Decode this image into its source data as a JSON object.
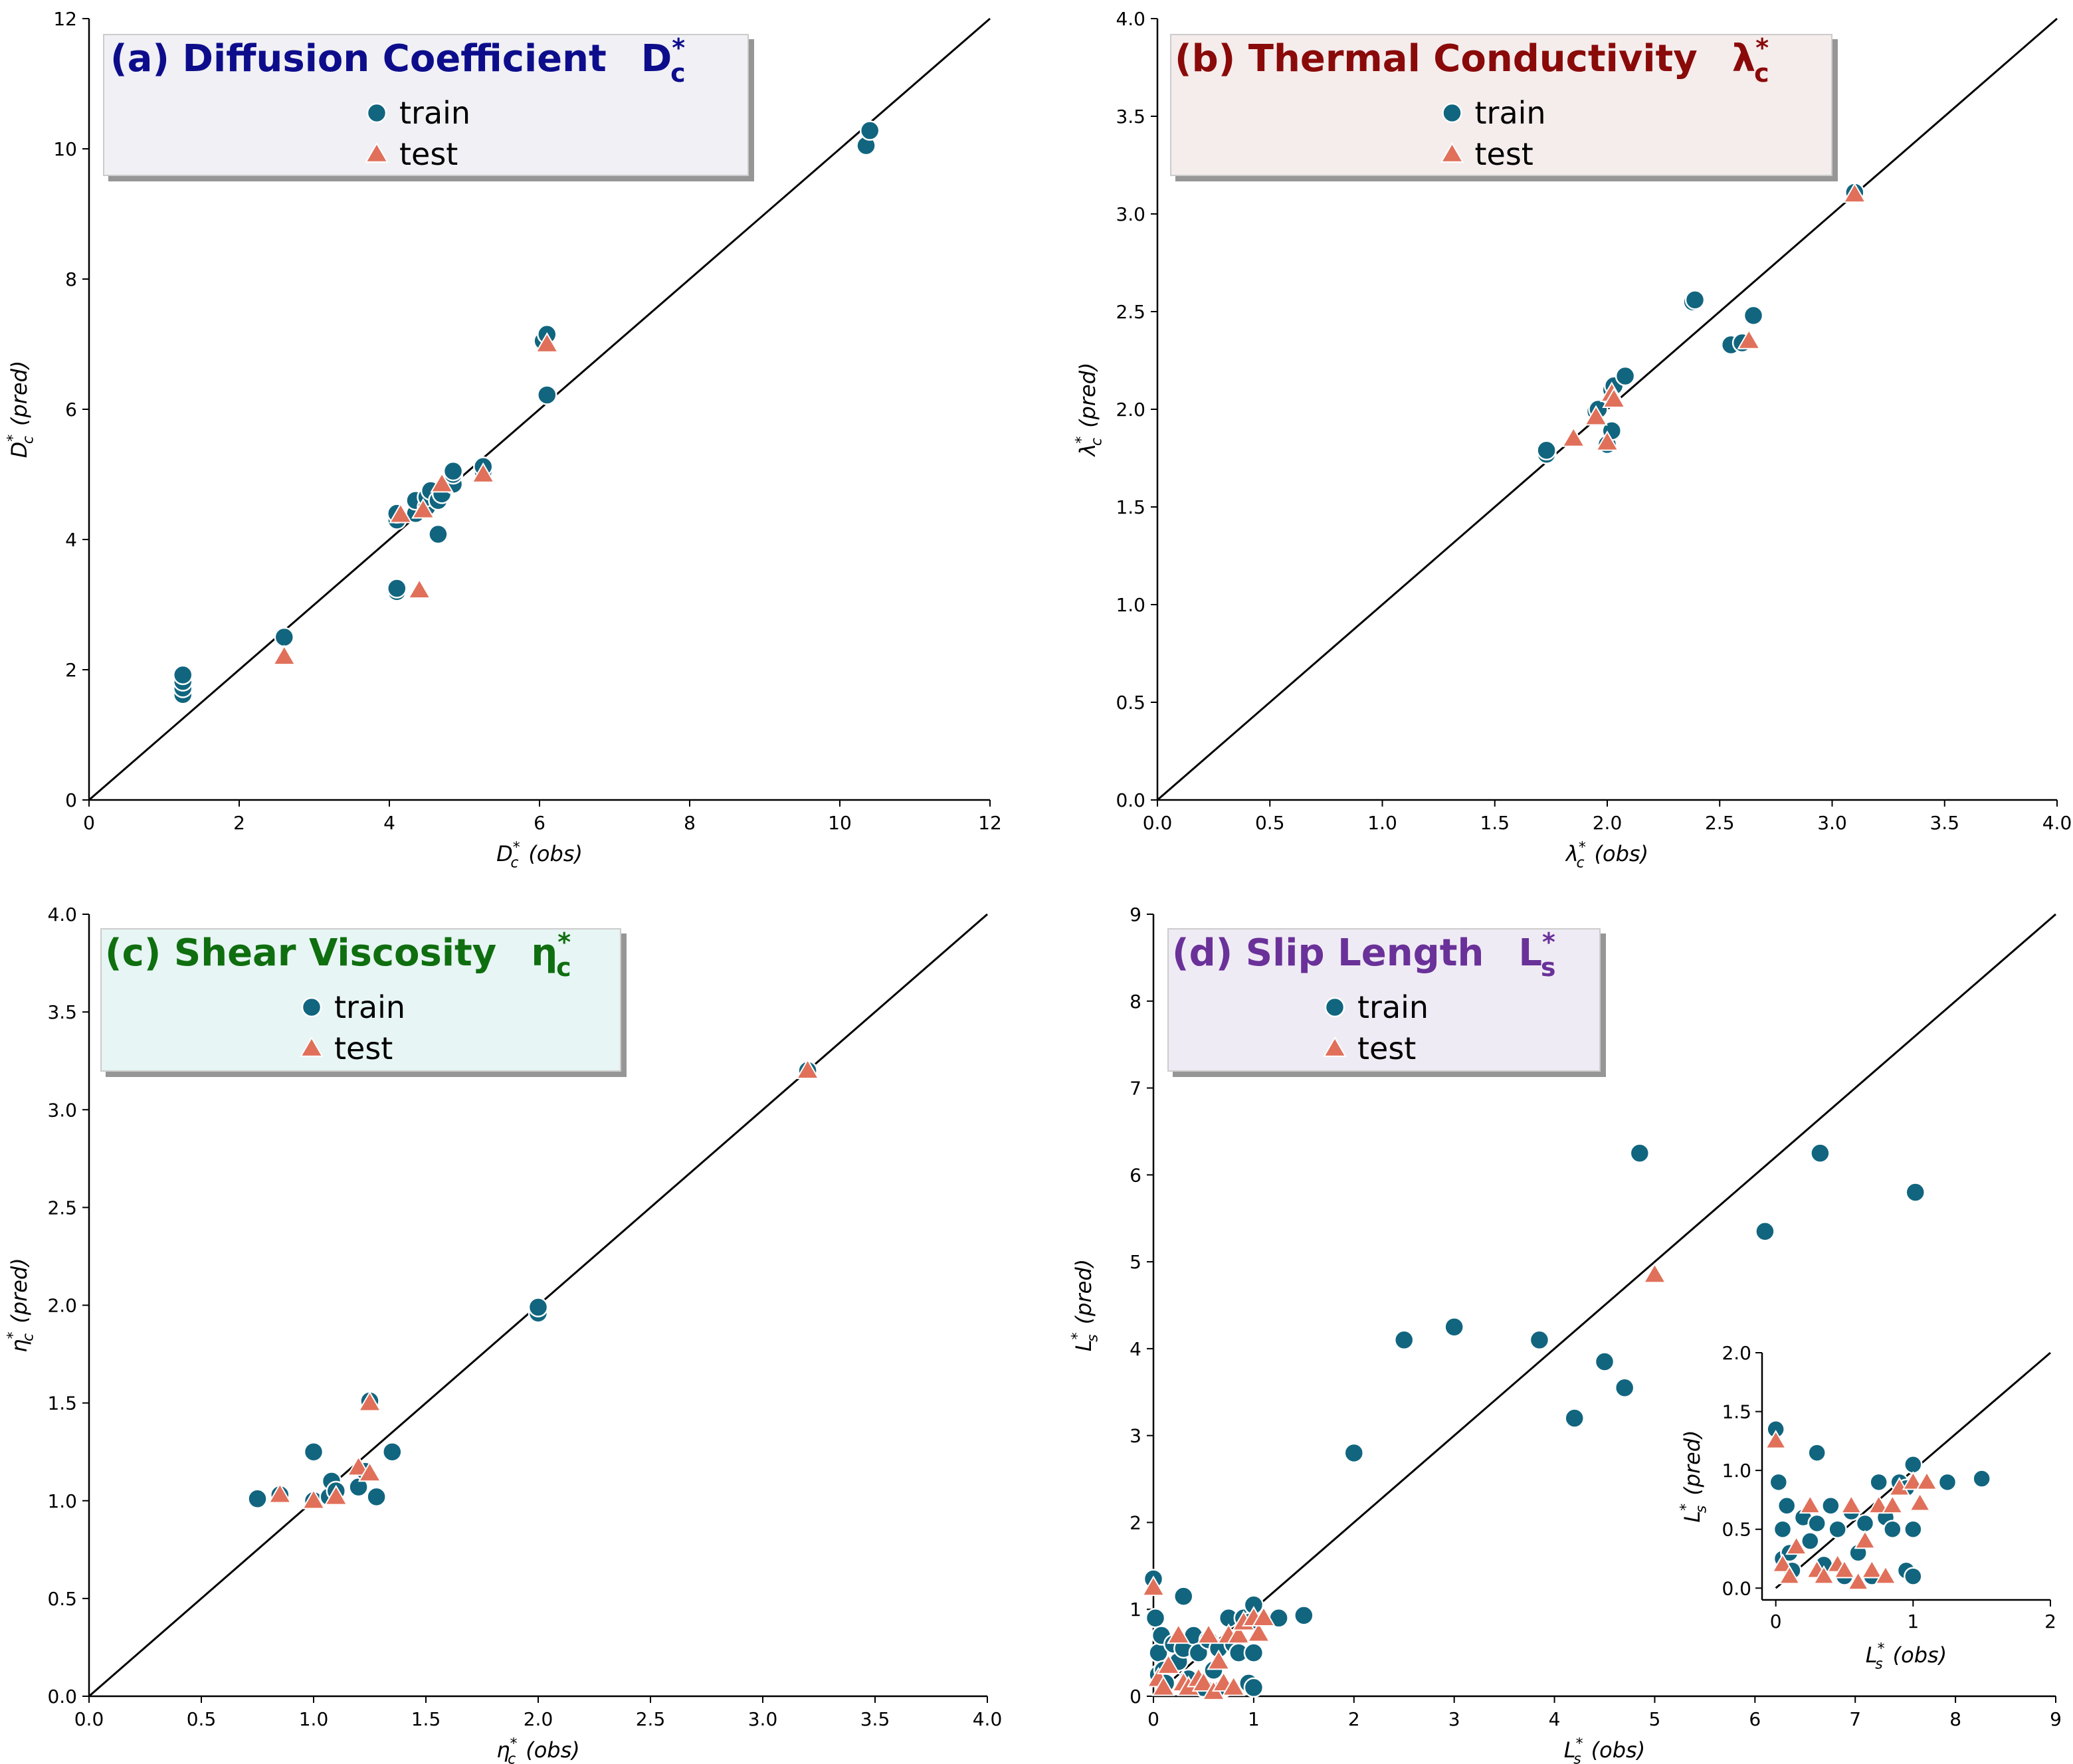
{
  "colors": {
    "train": "#11657f",
    "test": "#e0705a",
    "panel_a_title": "#0d0d8c",
    "panel_b_title": "#8a0a0a",
    "panel_c_title": "#0f6e0f",
    "panel_d_title": "#6a3199",
    "panel_a_legend_bg": "#f0f0f5",
    "panel_b_legend_bg": "#f5ecec",
    "panel_c_legend_bg": "#e7f5f4",
    "panel_d_legend_bg": "#efebf4"
  },
  "legend": {
    "train": "train",
    "test": "test"
  },
  "chart_data": [
    {
      "id": "a",
      "type": "scatter",
      "title": "(a) Diffusion Coefficient",
      "title_symbol": "D",
      "title_sub": "c",
      "title_sup": "*",
      "xlabel": {
        "sym": "D",
        "sub": "c",
        "sup": "*",
        "tail": "(obs)"
      },
      "ylabel": {
        "sym": "D",
        "sub": "c",
        "sup": "*",
        "tail": "(pred)"
      },
      "xlim": [
        0,
        12
      ],
      "ylim": [
        0,
        12
      ],
      "xticks": [
        0,
        2,
        4,
        6,
        8,
        10,
        12
      ],
      "yticks": [
        0,
        2,
        4,
        6,
        8,
        10,
        12
      ],
      "xtick_labels": [
        "0",
        "2",
        "4",
        "6",
        "8",
        "10",
        "12"
      ],
      "ytick_labels": [
        "0",
        "2",
        "4",
        "6",
        "8",
        "10",
        "12"
      ],
      "diagonal": true,
      "train": [
        [
          1.25,
          1.62
        ],
        [
          1.25,
          1.72
        ],
        [
          1.25,
          1.82
        ],
        [
          1.25,
          1.92
        ],
        [
          2.6,
          2.5
        ],
        [
          4.1,
          3.2
        ],
        [
          4.1,
          3.25
        ],
        [
          4.1,
          4.3
        ],
        [
          4.1,
          4.4
        ],
        [
          4.35,
          4.4
        ],
        [
          4.35,
          4.6
        ],
        [
          4.5,
          4.5
        ],
        [
          4.5,
          4.65
        ],
        [
          4.55,
          4.75
        ],
        [
          4.65,
          4.08
        ],
        [
          4.65,
          4.6
        ],
        [
          4.7,
          4.7
        ],
        [
          4.85,
          4.85
        ],
        [
          4.85,
          5.0
        ],
        [
          4.85,
          5.05
        ],
        [
          5.25,
          5.05
        ],
        [
          5.25,
          5.12
        ],
        [
          6.05,
          7.05
        ],
        [
          6.1,
          7.15
        ],
        [
          6.1,
          6.22
        ],
        [
          10.35,
          10.05
        ],
        [
          10.4,
          10.28
        ]
      ],
      "test": [
        [
          2.6,
          2.2
        ],
        [
          4.15,
          4.38
        ],
        [
          4.4,
          3.22
        ],
        [
          4.45,
          4.45
        ],
        [
          4.7,
          4.85
        ],
        [
          5.25,
          5.0
        ],
        [
          6.1,
          7.0
        ]
      ]
    },
    {
      "id": "b",
      "type": "scatter",
      "title": "(b) Thermal Conductivity",
      "title_symbol": "λ",
      "title_sub": "c",
      "title_sup": "*",
      "xlabel": {
        "sym": "λ",
        "sub": "c",
        "sup": "*",
        "tail": "(obs)"
      },
      "ylabel": {
        "sym": "λ",
        "sub": "c",
        "sup": "*",
        "tail": "(pred)"
      },
      "xlim": [
        0,
        4
      ],
      "ylim": [
        0,
        4
      ],
      "xticks": [
        0,
        0.5,
        1,
        1.5,
        2,
        2.5,
        3,
        3.5,
        4
      ],
      "yticks": [
        0,
        0.5,
        1,
        1.5,
        2,
        2.5,
        3,
        3.5,
        4
      ],
      "xtick_labels": [
        "0.0",
        "0.5",
        "1.0",
        "1.5",
        "2.0",
        "2.5",
        "3.0",
        "3.5",
        "4.0"
      ],
      "ytick_labels": [
        "0.0",
        "0.5",
        "1.0",
        "1.5",
        "2.0",
        "2.5",
        "3.0",
        "3.5",
        "4.0"
      ],
      "diagonal": true,
      "train": [
        [
          1.73,
          1.77
        ],
        [
          1.73,
          1.79
        ],
        [
          1.95,
          1.99
        ],
        [
          1.96,
          2.0
        ],
        [
          2.0,
          1.82
        ],
        [
          2.02,
          1.89
        ],
        [
          2.02,
          2.1
        ],
        [
          2.03,
          2.12
        ],
        [
          2.08,
          2.17
        ],
        [
          2.38,
          2.55
        ],
        [
          2.39,
          2.56
        ],
        [
          2.55,
          2.33
        ],
        [
          2.6,
          2.34
        ],
        [
          2.65,
          2.48
        ],
        [
          3.1,
          3.11
        ]
      ],
      "test": [
        [
          1.85,
          1.85
        ],
        [
          1.95,
          1.96
        ],
        [
          2.0,
          1.83
        ],
        [
          2.02,
          2.08
        ],
        [
          2.03,
          2.05
        ],
        [
          2.63,
          2.35
        ],
        [
          3.1,
          3.1
        ]
      ]
    },
    {
      "id": "c",
      "type": "scatter",
      "title": "(c) Shear Viscosity",
      "title_symbol": "η",
      "title_sub": "c",
      "title_sup": "*",
      "xlabel": {
        "sym": "η",
        "sub": "c",
        "sup": "*",
        "tail": "(obs)"
      },
      "ylabel": {
        "sym": "η",
        "sub": "c",
        "sup": "*",
        "tail": "(pred)"
      },
      "xlim": [
        0,
        4
      ],
      "ylim": [
        0,
        4
      ],
      "xticks": [
        0,
        0.5,
        1,
        1.5,
        2,
        2.5,
        3,
        3.5,
        4
      ],
      "yticks": [
        0,
        0.5,
        1,
        1.5,
        2,
        2.5,
        3,
        3.5,
        4
      ],
      "xtick_labels": [
        "0.0",
        "0.5",
        "1.0",
        "1.5",
        "2.0",
        "2.5",
        "3.0",
        "3.5",
        "4.0"
      ],
      "ytick_labels": [
        "0.0",
        "0.5",
        "1.0",
        "1.5",
        "2.0",
        "2.5",
        "3.0",
        "3.5",
        "4.0"
      ],
      "diagonal": true,
      "train": [
        [
          0.75,
          1.01
        ],
        [
          0.85,
          1.03
        ],
        [
          1.0,
          1.25
        ],
        [
          1.0,
          1.0
        ],
        [
          1.07,
          1.02
        ],
        [
          1.08,
          1.1
        ],
        [
          1.1,
          1.05
        ],
        [
          1.2,
          1.07
        ],
        [
          1.23,
          1.15
        ],
        [
          1.25,
          1.51
        ],
        [
          1.28,
          1.02
        ],
        [
          1.35,
          1.25
        ],
        [
          2.0,
          1.96
        ],
        [
          2.0,
          1.99
        ],
        [
          3.2,
          3.2
        ]
      ],
      "test": [
        [
          0.85,
          1.03
        ],
        [
          1.0,
          1.0
        ],
        [
          1.1,
          1.02
        ],
        [
          1.2,
          1.17
        ],
        [
          1.25,
          1.14
        ],
        [
          1.25,
          1.5
        ],
        [
          3.2,
          3.2
        ]
      ]
    },
    {
      "id": "d",
      "type": "scatter",
      "title": "(d) Slip Length",
      "title_symbol": "L",
      "title_sub": "s",
      "title_sup": "*",
      "xlabel": {
        "sym": "L",
        "sub": "s",
        "sup": "*",
        "tail": "(obs)"
      },
      "ylabel": {
        "sym": "L",
        "sub": "s",
        "sup": "*",
        "tail": "(pred)"
      },
      "xlim": [
        0,
        9
      ],
      "ylim": [
        0,
        9
      ],
      "xticks": [
        0,
        1,
        2,
        3,
        4,
        5,
        6,
        7,
        8,
        9
      ],
      "yticks": [
        0,
        1,
        2,
        3,
        4,
        5,
        6,
        7,
        8,
        9
      ],
      "xtick_labels": [
        "0",
        "1",
        "2",
        "3",
        "4",
        "5",
        "6",
        "7",
        "8",
        "9"
      ],
      "ytick_labels": [
        "0",
        "1",
        "2",
        "3",
        "4",
        "5",
        "6",
        "7",
        "8",
        "9"
      ],
      "diagonal": true,
      "train": [
        [
          0.0,
          1.35
        ],
        [
          0.02,
          0.9
        ],
        [
          0.05,
          0.5
        ],
        [
          0.05,
          0.25
        ],
        [
          0.08,
          0.7
        ],
        [
          0.1,
          0.3
        ],
        [
          0.12,
          0.15
        ],
        [
          0.2,
          0.6
        ],
        [
          0.25,
          0.4
        ],
        [
          0.3,
          1.15
        ],
        [
          0.3,
          0.55
        ],
        [
          0.35,
          0.2
        ],
        [
          0.4,
          0.7
        ],
        [
          0.45,
          0.5
        ],
        [
          0.5,
          0.1
        ],
        [
          0.55,
          0.65
        ],
        [
          0.6,
          0.3
        ],
        [
          0.65,
          0.55
        ],
        [
          0.7,
          0.1
        ],
        [
          0.75,
          0.9
        ],
        [
          0.8,
          0.6
        ],
        [
          0.85,
          0.5
        ],
        [
          0.9,
          0.9
        ],
        [
          0.95,
          0.85
        ],
        [
          1.0,
          0.5
        ],
        [
          1.0,
          1.05
        ],
        [
          0.95,
          0.15
        ],
        [
          1.0,
          0.1
        ],
        [
          1.25,
          0.9
        ],
        [
          1.5,
          0.93
        ],
        [
          2.0,
          2.8
        ],
        [
          2.5,
          4.1
        ],
        [
          3.0,
          4.25
        ],
        [
          3.85,
          4.1
        ],
        [
          4.2,
          3.2
        ],
        [
          4.5,
          3.85
        ],
        [
          4.7,
          3.55
        ],
        [
          4.85,
          6.25
        ],
        [
          6.1,
          5.35
        ],
        [
          6.65,
          6.25
        ],
        [
          7.6,
          5.8
        ]
      ],
      "test": [
        [
          0.0,
          1.25
        ],
        [
          0.05,
          0.2
        ],
        [
          0.1,
          0.1
        ],
        [
          0.15,
          0.35
        ],
        [
          0.25,
          0.7
        ],
        [
          0.3,
          0.15
        ],
        [
          0.35,
          0.1
        ],
        [
          0.45,
          0.2
        ],
        [
          0.5,
          0.15
        ],
        [
          0.55,
          0.7
        ],
        [
          0.6,
          0.05
        ],
        [
          0.65,
          0.4
        ],
        [
          0.7,
          0.15
        ],
        [
          0.75,
          0.7
        ],
        [
          0.8,
          0.1
        ],
        [
          0.85,
          0.7
        ],
        [
          0.9,
          0.85
        ],
        [
          1.0,
          0.9
        ],
        [
          1.05,
          0.72
        ],
        [
          1.1,
          0.9
        ],
        [
          5.0,
          4.85
        ]
      ],
      "inset": {
        "xlim": [
          -0.1,
          2
        ],
        "ylim": [
          -0.1,
          2
        ],
        "xticks": [
          0,
          1,
          2
        ],
        "yticks": [
          0,
          0.5,
          1,
          1.5,
          2
        ],
        "xtick_labels": [
          "0",
          "1",
          "2"
        ],
        "ytick_labels": [
          "0.0",
          "0.5",
          "1.0",
          "1.5",
          "2.0"
        ],
        "xlabel": {
          "sym": "L",
          "sub": "s",
          "sup": "*",
          "tail": "(obs)"
        },
        "ylabel": {
          "sym": "L",
          "sub": "s",
          "sup": "*",
          "tail": "(pred)"
        }
      }
    }
  ]
}
